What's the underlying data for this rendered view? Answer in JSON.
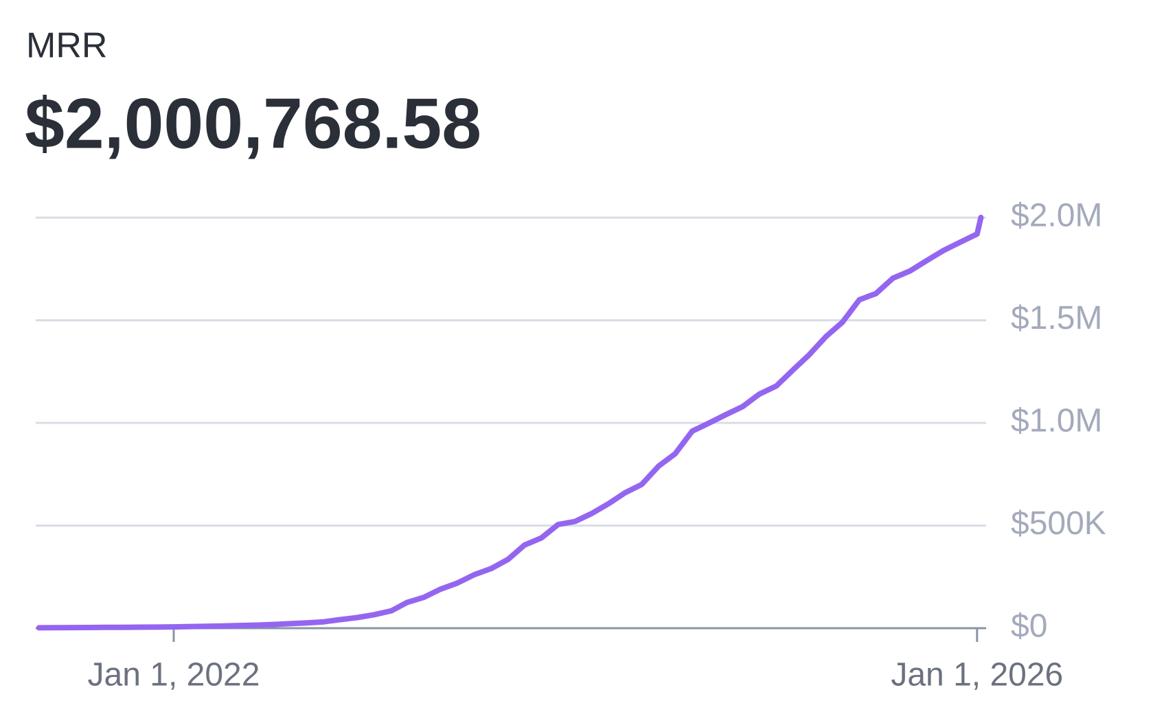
{
  "chart_data": {
    "type": "line",
    "title": "MRR",
    "subtitle": "$2,000,768.58",
    "x": [
      "2021-05-01",
      "2021-06-01",
      "2021-07-01",
      "2021-08-01",
      "2021-09-01",
      "2021-10-01",
      "2021-11-01",
      "2021-12-01",
      "2022-01-01",
      "2022-02-01",
      "2022-03-01",
      "2022-04-01",
      "2022-05-01",
      "2022-06-01",
      "2022-07-01",
      "2022-08-01",
      "2022-09-01",
      "2022-10-01",
      "2022-11-01",
      "2022-12-01",
      "2023-01-01",
      "2023-02-01",
      "2023-03-01",
      "2023-04-01",
      "2023-05-01",
      "2023-06-01",
      "2023-07-01",
      "2023-08-01",
      "2023-09-01",
      "2023-10-01",
      "2023-11-01",
      "2023-12-01",
      "2024-01-01",
      "2024-02-01",
      "2024-03-01",
      "2024-04-01",
      "2024-05-01",
      "2024-06-01",
      "2024-07-01",
      "2024-08-01",
      "2024-09-01",
      "2024-10-01",
      "2024-11-01",
      "2024-12-01",
      "2025-01-01",
      "2025-02-01",
      "2025-03-01",
      "2025-04-01",
      "2025-05-01",
      "2025-06-01",
      "2025-07-01",
      "2025-08-01",
      "2025-09-01",
      "2025-10-01",
      "2025-11-01",
      "2025-12-01",
      "2026-01-01",
      "2026-01-08"
    ],
    "series": [
      {
        "name": "MRR",
        "color": "#9466f0",
        "values": [
          2000,
          2500,
          3000,
          3500,
          4000,
          4500,
          5000,
          5500,
          6500,
          8000,
          9500,
          11000,
          13000,
          15000,
          18000,
          22000,
          26000,
          31000,
          42000,
          52000,
          66000,
          85000,
          125000,
          150000,
          190000,
          220000,
          260000,
          290000,
          335000,
          405000,
          440000,
          505000,
          520000,
          560000,
          605000,
          660000,
          700000,
          790000,
          850000,
          960000,
          1000000,
          1040000,
          1080000,
          1140000,
          1180000,
          1260000,
          1330000,
          1420000,
          1490000,
          1600000,
          1630000,
          1705000,
          1740000,
          1790000,
          1840000,
          1880000,
          1920000,
          2000768.58
        ]
      }
    ],
    "xlim": [
      "2021-04-25",
      "2026-01-10"
    ],
    "xticks": [
      {
        "value": "2022-01-01",
        "label": "Jan 1, 2022"
      },
      {
        "value": "2026-01-01",
        "label": "Jan 1, 2026"
      }
    ],
    "ylim": [
      0,
      2000000
    ],
    "yticks": [
      {
        "value": 0,
        "label": "$0"
      },
      {
        "value": 500000,
        "label": "$500K"
      },
      {
        "value": 1000000,
        "label": "$1.0M"
      },
      {
        "value": 1500000,
        "label": "$1.5M"
      },
      {
        "value": 2000000,
        "label": "$2.0M"
      }
    ],
    "grid": true
  }
}
